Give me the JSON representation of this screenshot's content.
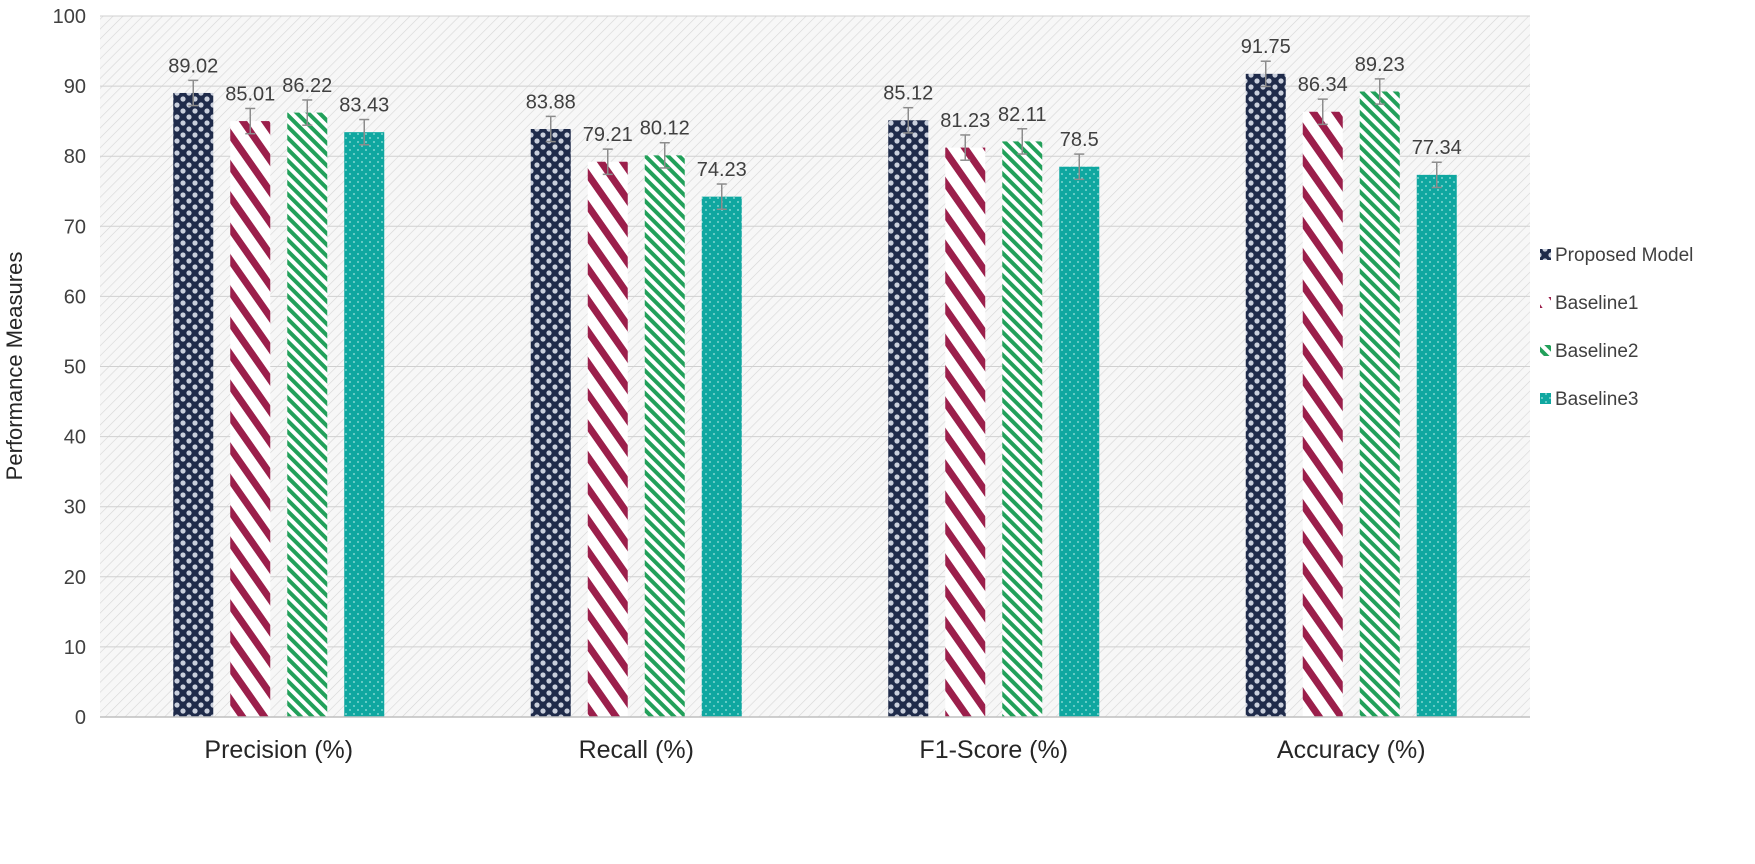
{
  "chart_data": {
    "type": "bar",
    "title": "",
    "xlabel": "",
    "ylabel": "Performance Measures",
    "ylim": [
      0,
      100
    ],
    "yticks": [
      0,
      10,
      20,
      30,
      40,
      50,
      60,
      70,
      80,
      90,
      100
    ],
    "grid": true,
    "legend_position": "right",
    "categories": [
      "Precision (%)",
      "Recall (%)",
      "F1-Score (%)",
      "Accuracy (%)"
    ],
    "series": [
      {
        "name": "Proposed Model",
        "pattern": "dots",
        "color": "#1f2b4a",
        "values": [
          89.02,
          83.88,
          85.12,
          91.75
        ],
        "labels": [
          "89.02",
          "83.88",
          "85.12",
          "91.75"
        ]
      },
      {
        "name": "Baseline1",
        "pattern": "wide-diagonal",
        "color": "#9b1f4b",
        "values": [
          85.01,
          79.21,
          81.23,
          86.34
        ],
        "labels": [
          "85.01",
          "79.21",
          "81.23",
          "86.34"
        ]
      },
      {
        "name": "Baseline2",
        "pattern": "narrow-diagonal",
        "color": "#22a05a",
        "values": [
          86.22,
          80.12,
          82.11,
          89.23
        ],
        "labels": [
          "86.22",
          "80.12",
          "82.11",
          "89.23"
        ]
      },
      {
        "name": "Baseline3",
        "pattern": "fine-dots",
        "color": "#0fa7a0",
        "values": [
          83.43,
          74.23,
          78.5,
          77.34
        ],
        "labels": [
          "83.43",
          "74.23",
          "78.5",
          "77.34"
        ]
      }
    ],
    "error_bar": 1.8
  }
}
